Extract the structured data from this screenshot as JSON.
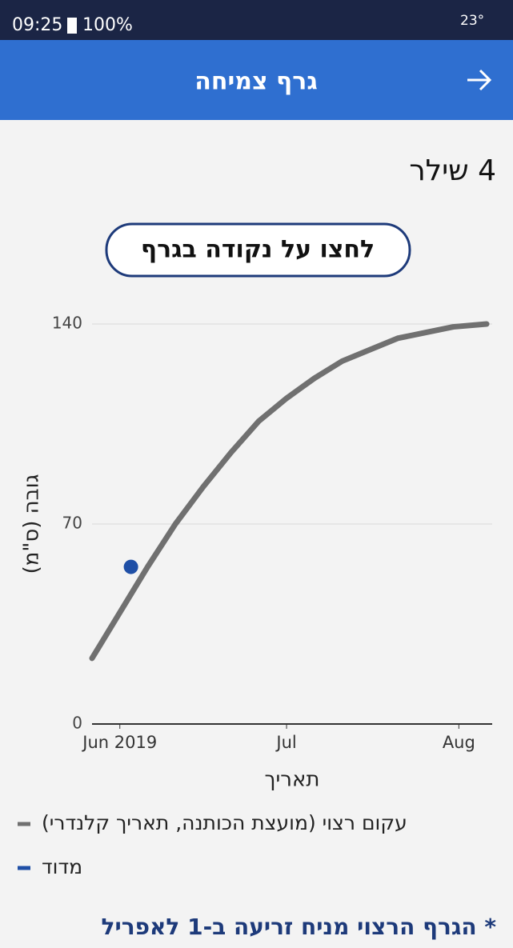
{
  "status_bar": {
    "time": "09:25",
    "battery": "100%",
    "temperature": "23°"
  },
  "header": {
    "title": "גרף צמיחה"
  },
  "button": {
    "label": "לחצו על נקודה בגרף"
  },
  "chart_data": {
    "type": "line",
    "title": "4 שילר",
    "x_label": "תאריך",
    "y_label": "גובה (ס\"מ)",
    "xlim": [
      -5,
      67
    ],
    "ylim": [
      0,
      140
    ],
    "xticks": [
      {
        "value": 0,
        "label": "Jun 2019"
      },
      {
        "value": 30,
        "label": "Jul"
      },
      {
        "value": 61,
        "label": "Aug"
      }
    ],
    "yticks": [
      0,
      70,
      140
    ],
    "grid": true,
    "legend": "bottom",
    "series": [
      {
        "name": "עקום רצוי (מועצת הכותנה, תאריך קלנדרי)",
        "color": "#707070",
        "mode": "line",
        "x": [
          -5,
          0,
          5,
          10,
          15,
          20,
          25,
          30,
          35,
          40,
          45,
          50,
          55,
          60,
          66
        ],
        "values": [
          23,
          39,
          55,
          70,
          83,
          95,
          106,
          114,
          121,
          127,
          131,
          135,
          137,
          139,
          140
        ]
      },
      {
        "name": "מדוד",
        "color": "#1f4fa6",
        "mode": "marker",
        "x": [
          2
        ],
        "values": [
          55
        ]
      }
    ]
  },
  "footnote": "* הגרף הרצוי מניח זריעה ב-1 לאפריל"
}
